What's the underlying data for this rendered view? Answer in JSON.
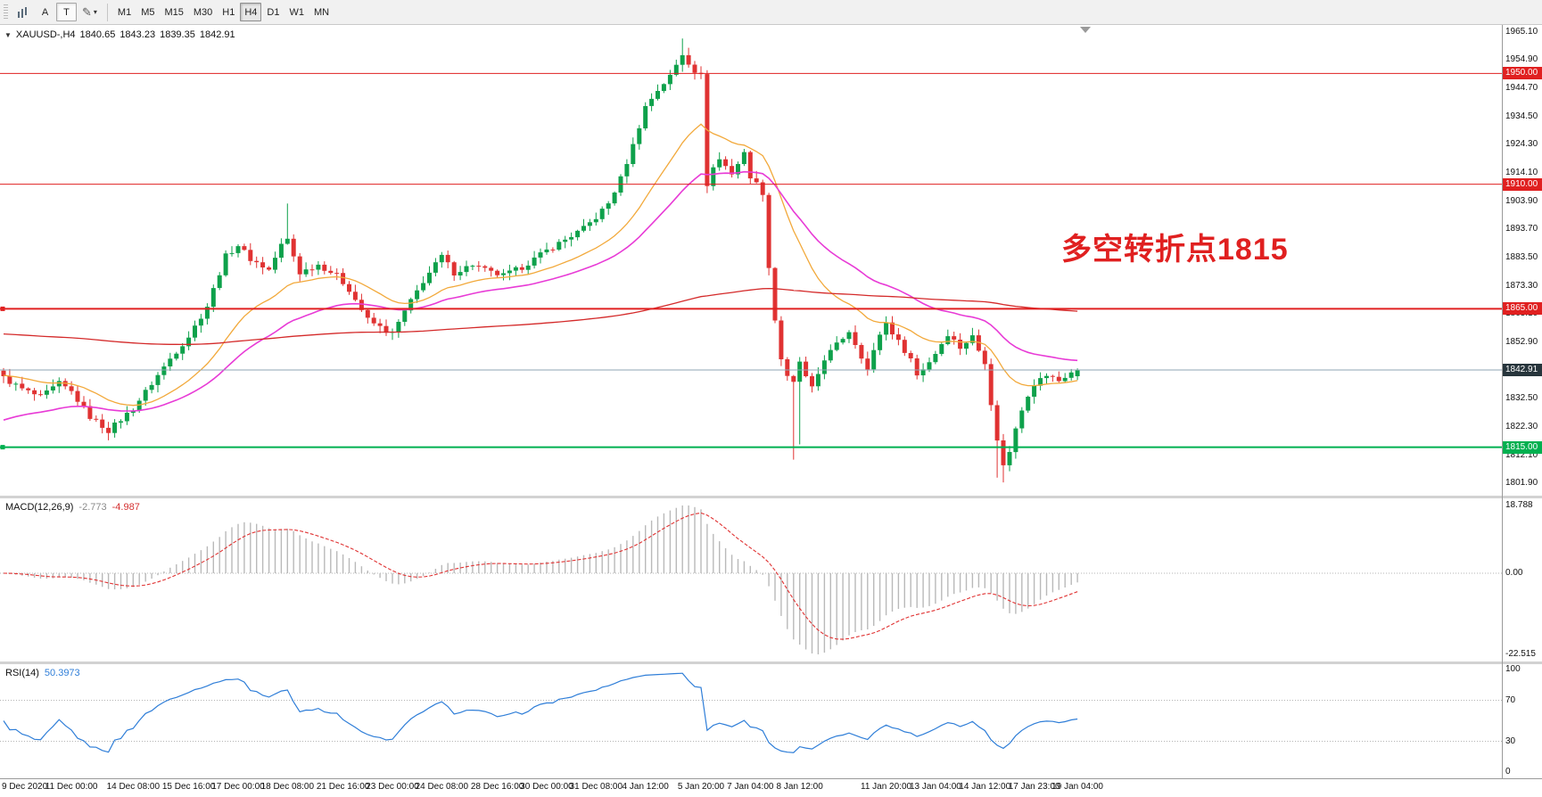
{
  "icons": {
    "pencil": "✎",
    "caret_down": "▾",
    "collapse": "▼"
  },
  "colors": {
    "up_candle": "#0ea14b",
    "down_candle": "#e03232",
    "ma_fast": "#f2a93b",
    "ma_mid": "#e83bd6",
    "ma_slow": "#d42a2a",
    "level_red": "#e02020",
    "level_green": "#00b050",
    "bid_line": "#8fa6b5",
    "bid_badge": "#27353c",
    "macd_hist": "#b9b9b9",
    "macd_signal": "#e03232",
    "rsi_line": "#2f7ed8",
    "annotation": "#e02020"
  },
  "toolbar": {
    "a_label": "A",
    "t_label": "T",
    "timeframes": [
      "M1",
      "M5",
      "M15",
      "M30",
      "H1",
      "H4",
      "D1",
      "W1",
      "MN"
    ],
    "active_timeframe": "H4"
  },
  "chart": {
    "symbol": "XAUUSD-,H4",
    "ohlc": {
      "open": "1840.65",
      "high": "1843.23",
      "low": "1839.35",
      "close": "1842.91"
    },
    "annotation_text": "多空转折点1815",
    "price_scale_labels": [
      "1965.10",
      "1954.90",
      "1944.70",
      "1934.50",
      "1924.30",
      "1914.10",
      "1903.90",
      "1893.70",
      "1883.50",
      "1873.30",
      "1863.10",
      "1852.90",
      "1842.70",
      "1832.50",
      "1822.30",
      "1812.10",
      "1801.90"
    ],
    "levels": [
      {
        "value": 1950.0,
        "label": "1950.00",
        "color": "#e02020",
        "width": 1,
        "handles": false
      },
      {
        "value": 1910.0,
        "label": "1910.00",
        "color": "#e02020",
        "width": 1,
        "handles": false
      },
      {
        "value": 1865.0,
        "label": "1865.00",
        "color": "#e02020",
        "width": 2,
        "handles": true
      },
      {
        "value": 1815.0,
        "label": "1815.00",
        "color": "#00b050",
        "width": 2,
        "handles": true
      }
    ],
    "bid": {
      "value": 1842.91,
      "label": "1842.91"
    }
  },
  "macd_panel": {
    "label": "MACD(12,26,9)",
    "value_main": "-2.773",
    "value_signal": "-4.987",
    "scale_max": "18.788",
    "scale_zero": "0.00",
    "scale_min": "-22.515"
  },
  "rsi_panel": {
    "label": "RSI(14)",
    "value": "50.3973",
    "scale": [
      "100",
      "70",
      "30",
      "0"
    ],
    "levels": [
      70,
      30
    ],
    "period": 14
  },
  "time_axis": [
    {
      "label": "9 Dec 2020",
      "bar": 0
    },
    {
      "label": "11 Dec 00:00",
      "bar": 11
    },
    {
      "label": "14 Dec 08:00",
      "bar": 21
    },
    {
      "label": "15 Dec 16:00",
      "bar": 30
    },
    {
      "label": "17 Dec 00:00",
      "bar": 38
    },
    {
      "label": "18 Dec 08:00",
      "bar": 46
    },
    {
      "label": "21 Dec 16:00",
      "bar": 55
    },
    {
      "label": "23 Dec 00:00",
      "bar": 63
    },
    {
      "label": "24 Dec 08:00",
      "bar": 71
    },
    {
      "label": "28 Dec 16:00",
      "bar": 80
    },
    {
      "label": "30 Dec 00:00",
      "bar": 88
    },
    {
      "label": "31 Dec 08:00",
      "bar": 96
    },
    {
      "label": "4 Jan 12:00",
      "bar": 104
    },
    {
      "label": "5 Jan 20:00",
      "bar": 113
    },
    {
      "label": "7 Jan 04:00",
      "bar": 121
    },
    {
      "label": "8 Jan 12:00",
      "bar": 129
    },
    {
      "label": "11 Jan 20:00",
      "bar": 143
    },
    {
      "label": "13 Jan 04:00",
      "bar": 151
    },
    {
      "label": "14 Jan 12:00",
      "bar": 159
    },
    {
      "label": "17 Jan 23:00",
      "bar": 167
    },
    {
      "label": "19 Jan 04:00",
      "bar": 174
    }
  ],
  "chart_data": {
    "type": "candlestick",
    "symbol": "XAUUSD",
    "timeframe": "H4",
    "bars": 175,
    "last_ohlc": {
      "open": 1840.65,
      "high": 1843.23,
      "low": 1839.35,
      "close": 1842.91
    },
    "close_anchors": [
      [
        0,
        1840
      ],
      [
        3,
        1836
      ],
      [
        6,
        1833
      ],
      [
        9,
        1838
      ],
      [
        11,
        1835
      ],
      [
        14,
        1826
      ],
      [
        17,
        1821
      ],
      [
        19,
        1825
      ],
      [
        21,
        1829
      ],
      [
        24,
        1838
      ],
      [
        27,
        1847
      ],
      [
        30,
        1855
      ],
      [
        33,
        1866
      ],
      [
        36,
        1884
      ],
      [
        38,
        1888
      ],
      [
        40,
        1883
      ],
      [
        43,
        1879
      ],
      [
        45,
        1888
      ],
      [
        46,
        1890
      ],
      [
        48,
        1878
      ],
      [
        51,
        1881
      ],
      [
        54,
        1877
      ],
      [
        56,
        1872
      ],
      [
        59,
        1861
      ],
      [
        62,
        1857
      ],
      [
        63,
        1856
      ],
      [
        65,
        1864
      ],
      [
        68,
        1875
      ],
      [
        71,
        1884
      ],
      [
        73,
        1878
      ],
      [
        76,
        1881
      ],
      [
        79,
        1878
      ],
      [
        81,
        1877
      ],
      [
        84,
        1880
      ],
      [
        86,
        1883
      ],
      [
        88,
        1886
      ],
      [
        91,
        1890
      ],
      [
        94,
        1894
      ],
      [
        96,
        1898
      ],
      [
        98,
        1903
      ],
      [
        100,
        1912
      ],
      [
        102,
        1924
      ],
      [
        104,
        1938
      ],
      [
        106,
        1944
      ],
      [
        108,
        1949
      ],
      [
        110,
        1957
      ],
      [
        112,
        1951
      ],
      [
        113,
        1949
      ],
      [
        114,
        1910
      ],
      [
        115,
        1916
      ],
      [
        116,
        1919
      ],
      [
        118,
        1914
      ],
      [
        120,
        1921
      ],
      [
        121,
        1913
      ],
      [
        123,
        1907
      ],
      [
        124,
        1880
      ],
      [
        125,
        1861
      ],
      [
        126,
        1847
      ],
      [
        127,
        1840
      ],
      [
        128,
        1838
      ],
      [
        129,
        1846
      ],
      [
        130,
        1840
      ],
      [
        131,
        1836
      ],
      [
        133,
        1847
      ],
      [
        135,
        1852
      ],
      [
        137,
        1857
      ],
      [
        139,
        1848
      ],
      [
        140,
        1843
      ],
      [
        142,
        1856
      ],
      [
        143,
        1860
      ],
      [
        145,
        1853
      ],
      [
        147,
        1847
      ],
      [
        148,
        1841
      ],
      [
        150,
        1846
      ],
      [
        151,
        1849
      ],
      [
        153,
        1856
      ],
      [
        155,
        1851
      ],
      [
        157,
        1855
      ],
      [
        158,
        1850
      ],
      [
        159,
        1846
      ],
      [
        160,
        1831
      ],
      [
        161,
        1817
      ],
      [
        162,
        1809
      ],
      [
        163,
        1813
      ],
      [
        164,
        1822
      ],
      [
        165,
        1829
      ],
      [
        166,
        1834
      ],
      [
        167,
        1838
      ],
      [
        169,
        1841
      ],
      [
        171,
        1839
      ],
      [
        173,
        1842
      ],
      [
        174,
        1842.91
      ]
    ],
    "wick_overrides": [
      {
        "bar": 46,
        "high": 1903
      },
      {
        "bar": 110,
        "high": 1962.6
      },
      {
        "bar": 128,
        "low": 1810.5
      },
      {
        "bar": 129,
        "low": 1816
      },
      {
        "bar": 161,
        "low": 1804
      },
      {
        "bar": 162,
        "low": 1802.3
      }
    ],
    "noise_amplitude": 2.0,
    "moving_averages": [
      {
        "name": "fast",
        "period": 20,
        "seed": 1841,
        "color_key": "ma_fast",
        "width": 1.3
      },
      {
        "name": "mid",
        "period": 40,
        "seed": 1824,
        "color_key": "ma_mid",
        "width": 1.6
      },
      {
        "name": "slow",
        "period": 300,
        "seed": 1856,
        "color_key": "ma_slow",
        "width": 1.3
      }
    ],
    "horizontal_levels": [
      1950,
      1910,
      1865,
      1815
    ],
    "bid_price": 1842.91,
    "macd": {
      "fast": 12,
      "slow": 26,
      "signal": 9,
      "last_main": -2.773,
      "last_signal": -4.987,
      "display_max": 18.788,
      "display_min": -22.515
    },
    "rsi": {
      "period": 14,
      "last": 50.3973,
      "levels": [
        70,
        30
      ]
    }
  }
}
